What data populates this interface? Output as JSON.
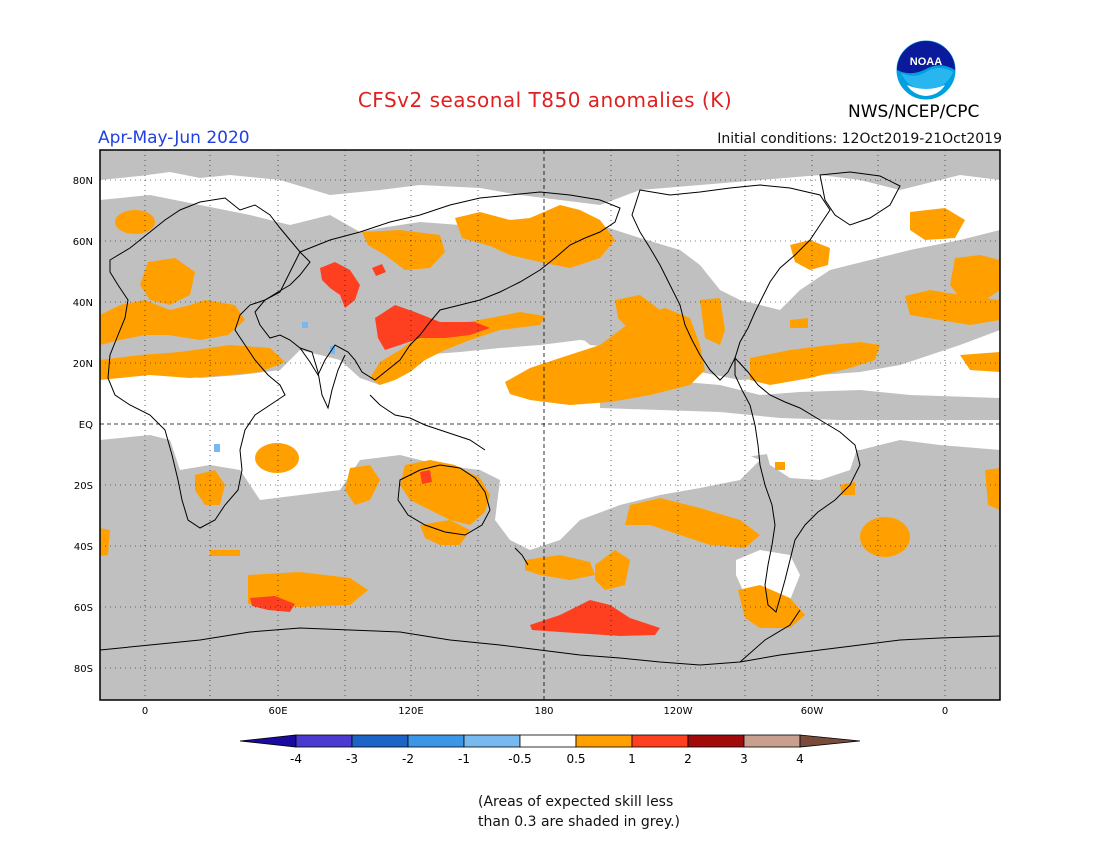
{
  "header": {
    "title": "CFSv2 seasonal T850 anomalies (K)",
    "agency": "NWS/NCEP/CPC",
    "season": "Apr-May-Jun 2020",
    "initial_conditions": "Initial conditions: 12Oct2019-21Oct2019",
    "logo_text": "NOAA"
  },
  "map": {
    "lat_labels": [
      "80N",
      "60N",
      "40N",
      "20N",
      "EQ",
      "20S",
      "40S",
      "60S",
      "80S"
    ],
    "lon_labels": [
      "0",
      "60E",
      "120E",
      "180",
      "120W",
      "60W",
      "0"
    ],
    "colors": {
      "skill_mask_grey": "#c0c0c0",
      "positive_05_1": "#ffa000",
      "positive_1_2": "#ff4020",
      "negative_05_1": "#77b8ee",
      "land_outline": "#000000"
    }
  },
  "colorbar": {
    "labels": [
      "-4",
      "-3",
      "-2",
      "-1",
      "-0.5",
      "0.5",
      "1",
      "2",
      "3",
      "4"
    ],
    "colors": [
      "#1a0aa0",
      "#4a3ad0",
      "#1c64c8",
      "#3c96e8",
      "#78baf0",
      "#ffffff",
      "#ffa000",
      "#ff4020",
      "#a00a0a",
      "#c8a090",
      "#7a4a3a"
    ]
  },
  "note": {
    "line1": "(Areas of expected skill less",
    "line2": "than 0.3 are shaded in grey.)"
  }
}
